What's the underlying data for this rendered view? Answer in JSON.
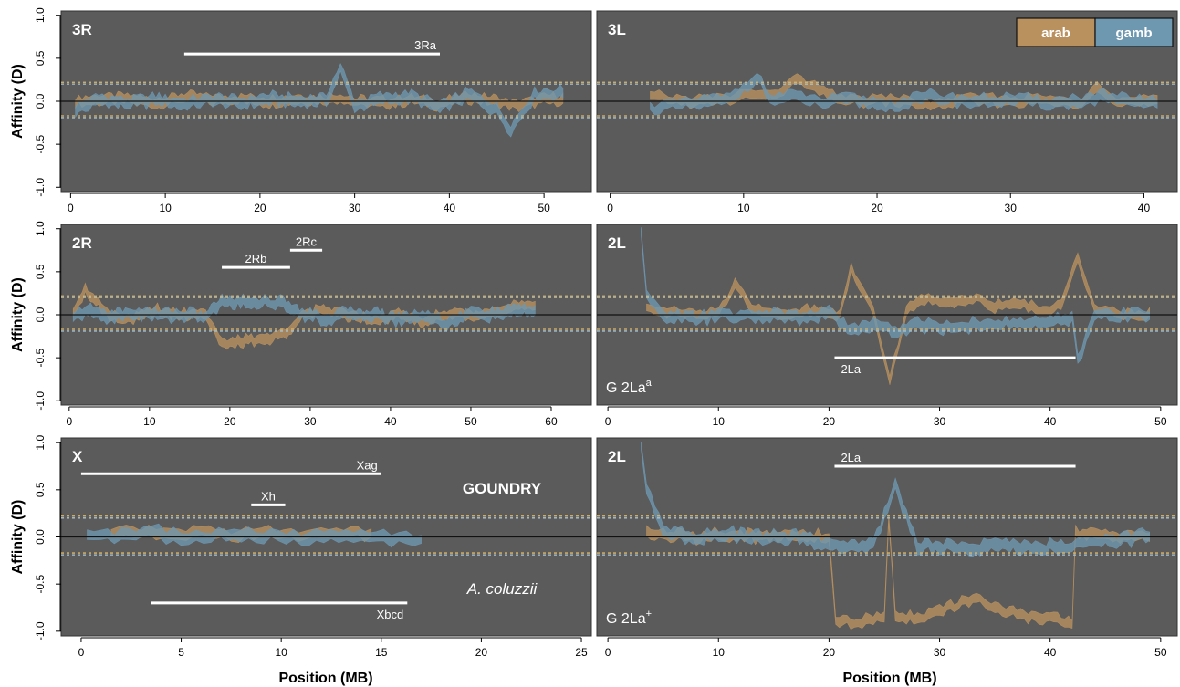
{
  "figure": {
    "ylabel": "Affinity (D)",
    "xlabel": "Position (MB)",
    "colors": {
      "background": "#5b5b5b",
      "arab": "#b8915f",
      "gamb": "#6e97b0",
      "arab_dashed": "#e0b865",
      "gamb_dashed": "#a8c6d6",
      "zero_line": "#111111",
      "annotation": "#ffffff"
    },
    "legend": {
      "items": [
        {
          "label": "arab",
          "color": "#b8915f"
        },
        {
          "label": "gamb",
          "color": "#6e97b0"
        }
      ],
      "placement": "top-right of 3L panel"
    },
    "site_label": "GOUNDRY",
    "species_label": "A. coluzzii"
  },
  "chart_data": [
    {
      "type": "area",
      "panel": "3R",
      "title": "3R",
      "ylabel": "Affinity (D)",
      "xlabel": "",
      "ylim": [
        -1.05,
        1.05
      ],
      "yticks": [
        "-1.0",
        "-0.5",
        "0.0",
        "0.5",
        "1.0"
      ],
      "xlim": [
        -1,
        55
      ],
      "xticks": [
        0,
        10,
        20,
        30,
        40,
        50
      ],
      "thresholds": {
        "arab": [
          0.22,
          -0.17
        ],
        "gamb": [
          0.2,
          -0.19
        ]
      },
      "inversions": [
        {
          "label": "3Ra",
          "start": 12,
          "end": 39,
          "y": 0.55
        }
      ],
      "series": [
        {
          "name": "arab",
          "x": [
            0.5,
            3,
            6,
            9,
            12,
            15,
            18,
            21,
            24,
            27,
            28.5,
            30,
            33,
            36,
            39,
            42,
            45,
            47,
            50,
            52
          ],
          "values": [
            0.0,
            0.02,
            0.03,
            -0.02,
            0.05,
            0.02,
            0.03,
            0.0,
            0.03,
            0.02,
            0.05,
            0.0,
            -0.02,
            0.02,
            -0.03,
            0.05,
            0.0,
            -0.05,
            0.02,
            0.02
          ]
        },
        {
          "name": "gamb",
          "x": [
            0.5,
            3,
            6,
            9,
            12,
            15,
            18,
            21,
            24,
            27,
            28.5,
            30,
            33,
            36,
            39,
            42,
            45,
            46.5,
            49,
            52
          ],
          "values": [
            -0.1,
            0.02,
            -0.02,
            0.02,
            -0.03,
            0.02,
            -0.02,
            0.03,
            0.0,
            0.02,
            0.38,
            -0.05,
            0.03,
            0.05,
            -0.08,
            0.08,
            -0.1,
            -0.32,
            0.08,
            0.1
          ]
        }
      ]
    },
    {
      "type": "area",
      "panel": "3L",
      "title": "3L",
      "ylim": [
        -1.05,
        1.05
      ],
      "xlim": [
        -1,
        42.5
      ],
      "xticks": [
        0,
        10,
        20,
        30,
        40
      ],
      "thresholds": {
        "arab": [
          0.22,
          -0.17
        ],
        "gamb": [
          0.2,
          -0.19
        ]
      },
      "inversions": [],
      "series": [
        {
          "name": "arab",
          "x": [
            3,
            6,
            9,
            10.5,
            12,
            14,
            16,
            18,
            21,
            24,
            27,
            30,
            33,
            35,
            36.5,
            38,
            41
          ],
          "values": [
            0.05,
            0.0,
            0.02,
            0.1,
            0.05,
            0.25,
            0.1,
            0.0,
            0.02,
            -0.05,
            0.03,
            0.0,
            0.02,
            -0.05,
            0.2,
            0.0,
            0.0
          ]
        },
        {
          "name": "gamb",
          "x": [
            3,
            6,
            9,
            11,
            12,
            14,
            16,
            18,
            21,
            24,
            27,
            30,
            33,
            35,
            37,
            39,
            41
          ],
          "values": [
            -0.08,
            -0.03,
            0.02,
            0.3,
            0.02,
            0.05,
            -0.02,
            0.02,
            -0.05,
            0.05,
            0.0,
            0.02,
            -0.02,
            0.0,
            0.05,
            -0.02,
            0.0
          ]
        }
      ]
    },
    {
      "type": "area",
      "panel": "2R",
      "title": "2R",
      "ylim": [
        -1.05,
        1.05
      ],
      "xlim": [
        -1,
        65
      ],
      "xticks": [
        0,
        10,
        20,
        30,
        40,
        50,
        60
      ],
      "thresholds": {
        "arab": [
          0.22,
          -0.17
        ],
        "gamb": [
          0.2,
          -0.19
        ]
      },
      "inversions": [
        {
          "label": "2Rb",
          "start": 19,
          "end": 27.5,
          "y": 0.55
        },
        {
          "label": "2Rc",
          "start": 27.5,
          "end": 31.5,
          "y": 0.75
        }
      ],
      "series": [
        {
          "name": "arab",
          "x": [
            0.5,
            2,
            5,
            8,
            11,
            14,
            17,
            19,
            22,
            25,
            27,
            29,
            32,
            35,
            38,
            41,
            44,
            47,
            50,
            53,
            56,
            58
          ],
          "values": [
            0.05,
            0.3,
            0.0,
            -0.05,
            0.05,
            0.0,
            0.02,
            -0.35,
            -0.3,
            -0.28,
            -0.2,
            0.0,
            0.05,
            0.0,
            -0.05,
            0.0,
            -0.08,
            0.02,
            -0.02,
            0.05,
            0.1,
            0.1
          ]
        },
        {
          "name": "gamb",
          "x": [
            0.5,
            2,
            5,
            8,
            11,
            14,
            17,
            19,
            22,
            25,
            27,
            29,
            32,
            35,
            38,
            41,
            44,
            47,
            50,
            53,
            56,
            58
          ],
          "values": [
            -0.05,
            0.05,
            -0.02,
            0.02,
            0.0,
            0.0,
            -0.02,
            0.15,
            0.15,
            0.15,
            0.12,
            0.02,
            -0.05,
            0.02,
            0.0,
            -0.05,
            0.0,
            -0.1,
            0.02,
            0.0,
            0.05,
            0.05
          ]
        }
      ]
    },
    {
      "type": "area",
      "panel": "2L",
      "title": "2L",
      "group_label": "G 2La",
      "group_label_sup": "a",
      "ylim": [
        -1.05,
        1.05
      ],
      "xlim": [
        -1,
        51.5
      ],
      "xticks": [
        0,
        10,
        20,
        30,
        40,
        50
      ],
      "thresholds": {
        "arab": [
          0.22,
          -0.17
        ],
        "gamb": [
          0.2,
          -0.19
        ]
      },
      "inversions": [
        {
          "label": "2La",
          "start": 20.5,
          "end": 42.3,
          "y": -0.5,
          "label_below": true
        }
      ],
      "series": [
        {
          "name": "arab",
          "x": [
            3.5,
            5,
            8,
            10,
            11.5,
            13,
            15,
            18,
            21,
            22,
            24,
            25.5,
            27,
            29,
            31,
            33,
            35,
            37,
            39,
            41,
            42.5,
            44,
            47,
            49
          ],
          "values": [
            0.1,
            0.05,
            0.0,
            0.02,
            0.35,
            0.1,
            0.0,
            0.05,
            0.0,
            0.55,
            0.05,
            -0.75,
            0.05,
            0.2,
            0.15,
            0.2,
            0.1,
            0.15,
            0.05,
            0.1,
            0.7,
            0.05,
            0.0,
            0.0
          ]
        },
        {
          "name": "gamb",
          "x": [
            3,
            3.5,
            5,
            8,
            10,
            12,
            15,
            18,
            20,
            22,
            24,
            26,
            28,
            30,
            33,
            35,
            38,
            40,
            42,
            42.5,
            44,
            47,
            49
          ],
          "values": [
            0.98,
            0.2,
            0.0,
            -0.05,
            0.0,
            -0.03,
            0.0,
            -0.05,
            0.05,
            -0.2,
            -0.1,
            -0.2,
            -0.1,
            -0.15,
            -0.12,
            -0.1,
            -0.1,
            -0.08,
            -0.05,
            -0.55,
            0.0,
            0.0,
            0.0
          ]
        }
      ]
    },
    {
      "type": "area",
      "panel": "X",
      "title": "X",
      "ylim": [
        -1.05,
        1.05
      ],
      "xlim": [
        -1,
        25.5
      ],
      "xticks": [
        0,
        5,
        10,
        15,
        20,
        25
      ],
      "thresholds": {
        "arab": [
          0.22,
          -0.17
        ],
        "gamb": [
          0.2,
          -0.19
        ]
      },
      "inversions": [
        {
          "label": "Xag",
          "start": 0,
          "end": 15,
          "y": 0.67
        },
        {
          "label": "Xh",
          "start": 8.5,
          "end": 10.2,
          "y": 0.34
        },
        {
          "label": "Xbcd",
          "start": 3.5,
          "end": 16.3,
          "y": -0.7,
          "label_below": true
        }
      ],
      "series": [
        {
          "name": "arab",
          "x": [
            1.5,
            3,
            4.5,
            6,
            7.5,
            9,
            10.5,
            12,
            13.5,
            14.5
          ],
          "values": [
            0.03,
            0.05,
            0.02,
            0.05,
            0.02,
            0.05,
            0.02,
            0.03,
            0.05,
            0.03
          ]
        },
        {
          "name": "gamb",
          "x": [
            0.3,
            2,
            3.5,
            5,
            6.5,
            8,
            9.5,
            11,
            12.5,
            14,
            15.5,
            17
          ],
          "values": [
            0.05,
            0.0,
            0.05,
            -0.02,
            0.03,
            0.0,
            0.02,
            -0.02,
            0.0,
            0.02,
            -0.02,
            0.0
          ]
        }
      ]
    },
    {
      "type": "area",
      "panel": "2L",
      "title": "2L",
      "group_label": "G 2La",
      "group_label_sup": "+",
      "ylim": [
        -1.05,
        1.05
      ],
      "xlim": [
        -1,
        51.5
      ],
      "xticks": [
        0,
        10,
        20,
        30,
        40,
        50
      ],
      "thresholds": {
        "arab": [
          0.22,
          -0.17
        ],
        "gamb": [
          0.2,
          -0.19
        ]
      },
      "inversions": [
        {
          "label": "2La",
          "start": 20.5,
          "end": 42.3,
          "y": 0.75
        }
      ],
      "series": [
        {
          "name": "arab",
          "x": [
            3.5,
            5,
            8,
            11,
            14,
            17,
            20,
            20.6,
            23,
            25,
            25.4,
            26,
            28,
            30,
            32,
            33,
            35,
            38,
            40,
            42,
            42.3,
            45,
            48,
            49
          ],
          "values": [
            0.05,
            0.02,
            0.0,
            0.03,
            0.0,
            0.02,
            0.0,
            -0.9,
            -0.9,
            -0.85,
            0.2,
            -0.85,
            -0.85,
            -0.8,
            -0.7,
            -0.65,
            -0.75,
            -0.85,
            -0.88,
            -0.9,
            0.05,
            0.0,
            0.02,
            0.0
          ]
        },
        {
          "name": "gamb",
          "x": [
            3,
            3.5,
            5,
            8,
            11,
            14,
            17,
            20,
            22,
            24,
            26,
            28,
            30,
            32,
            34,
            36,
            38,
            40,
            42,
            44,
            46,
            48,
            49
          ],
          "values": [
            0.98,
            0.5,
            0.05,
            0.0,
            0.02,
            -0.02,
            0.0,
            -0.08,
            -0.1,
            -0.1,
            0.55,
            -0.1,
            -0.1,
            -0.12,
            -0.1,
            -0.1,
            -0.1,
            -0.1,
            -0.1,
            -0.05,
            -0.05,
            0.0,
            0.02
          ]
        }
      ]
    }
  ]
}
